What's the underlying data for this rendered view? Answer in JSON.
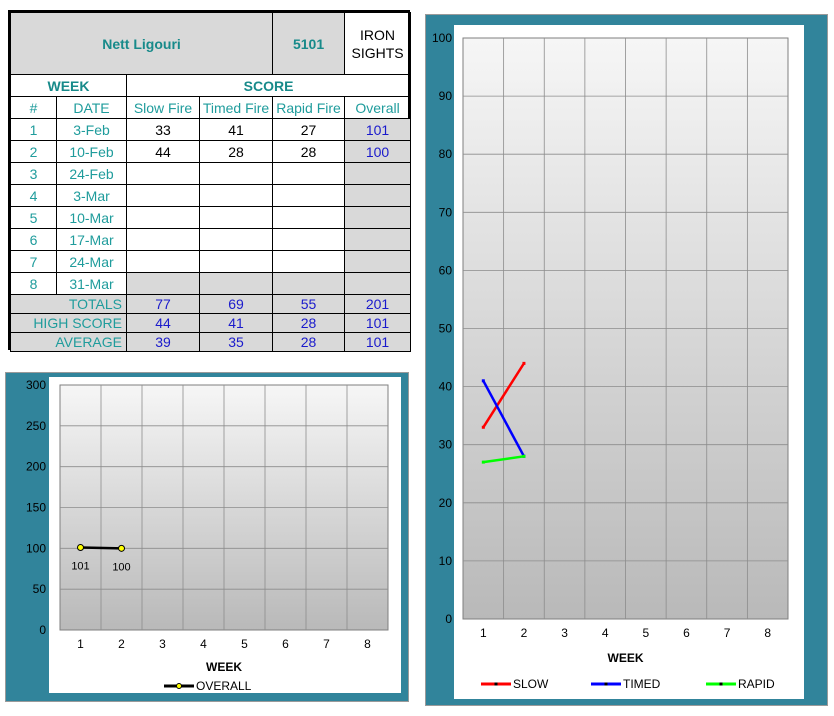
{
  "header": {
    "name": "Nett Ligouri",
    "number": "5101",
    "category_line1": "IRON",
    "category_line2": "SIGHTS"
  },
  "table": {
    "group_week": "WEEK",
    "group_score": "SCORE",
    "columns": [
      "#",
      "DATE",
      "Slow Fire",
      "Timed Fire",
      "Rapid Fire",
      "Overall"
    ],
    "rows": [
      {
        "n": "1",
        "date": "3-Feb",
        "slow": "33",
        "timed": "41",
        "rapid": "27",
        "overall": "101"
      },
      {
        "n": "2",
        "date": "10-Feb",
        "slow": "44",
        "timed": "28",
        "rapid": "28",
        "overall": "100"
      },
      {
        "n": "3",
        "date": "24-Feb",
        "slow": "",
        "timed": "",
        "rapid": "",
        "overall": ""
      },
      {
        "n": "4",
        "date": "3-Mar",
        "slow": "",
        "timed": "",
        "rapid": "",
        "overall": ""
      },
      {
        "n": "5",
        "date": "10-Mar",
        "slow": "",
        "timed": "",
        "rapid": "",
        "overall": ""
      },
      {
        "n": "6",
        "date": "17-Mar",
        "slow": "",
        "timed": "",
        "rapid": "",
        "overall": ""
      },
      {
        "n": "7",
        "date": "24-Mar",
        "slow": "",
        "timed": "",
        "rapid": "",
        "overall": ""
      },
      {
        "n": "8",
        "date": "31-Mar",
        "slow": "",
        "timed": "",
        "rapid": "",
        "overall": ""
      }
    ],
    "summary": [
      {
        "label": "TOTALS",
        "slow": "77",
        "timed": "69",
        "rapid": "55",
        "overall": "201"
      },
      {
        "label": "HIGH SCORE",
        "slow": "44",
        "timed": "41",
        "rapid": "28",
        "overall": "101"
      },
      {
        "label": "AVERAGE",
        "slow": "39",
        "timed": "35",
        "rapid": "28",
        "overall": "101"
      }
    ]
  },
  "colors": {
    "frame": "#31849b",
    "slow": "#ff0000",
    "timed": "#0000ff",
    "rapid": "#00ff00",
    "overall": "#000000",
    "marker_overall": "#ffff00"
  },
  "chart_data": [
    {
      "type": "line",
      "title": "",
      "xlabel": "WEEK",
      "ylabel": "",
      "categories": [
        "1",
        "2",
        "3",
        "4",
        "5",
        "6",
        "7",
        "8"
      ],
      "ylim": [
        0,
        300
      ],
      "yticks": [
        0,
        50,
        100,
        150,
        200,
        250,
        300
      ],
      "grid": true,
      "legend": "bottom",
      "series": [
        {
          "name": "OVERALL",
          "values": [
            101,
            100,
            null,
            null,
            null,
            null,
            null,
            null
          ],
          "data_labels": [
            "101",
            "100"
          ]
        }
      ]
    },
    {
      "type": "line",
      "title": "",
      "xlabel": "WEEK",
      "ylabel": "",
      "categories": [
        "1",
        "2",
        "3",
        "4",
        "5",
        "6",
        "7",
        "8"
      ],
      "ylim": [
        0,
        100
      ],
      "yticks": [
        0,
        10,
        20,
        30,
        40,
        50,
        60,
        70,
        80,
        90,
        100
      ],
      "grid": true,
      "legend": "bottom",
      "series": [
        {
          "name": "SLOW",
          "values": [
            33,
            44,
            null,
            null,
            null,
            null,
            null,
            null
          ]
        },
        {
          "name": "TIMED",
          "values": [
            41,
            28,
            null,
            null,
            null,
            null,
            null,
            null
          ]
        },
        {
          "name": "RAPID",
          "values": [
            27,
            28,
            null,
            null,
            null,
            null,
            null,
            null
          ]
        }
      ]
    }
  ]
}
